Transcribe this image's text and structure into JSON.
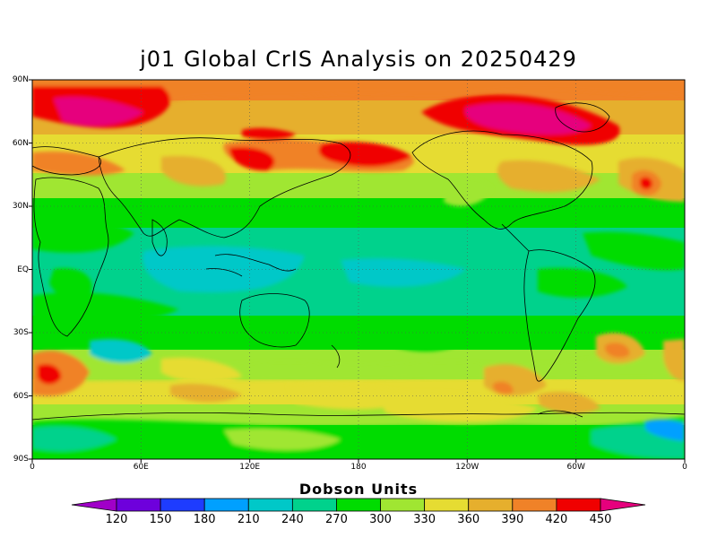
{
  "title": "j01 Global CrIS Analysis on 20250429",
  "map": {
    "projection": "equirectangular, centered on 180",
    "lon_range": [
      0,
      360
    ],
    "lat_range": [
      -90,
      90
    ],
    "lat_ticks": [
      "90N",
      "60N",
      "30N",
      "EQ",
      "30S",
      "60S",
      "90S"
    ],
    "lon_ticks": [
      "0",
      "60E",
      "120E",
      "180",
      "120W",
      "60W",
      "0"
    ],
    "gridlines": "dotted at 60 deg lon / 30 deg lat"
  },
  "colorbar": {
    "title": "Dobson Units",
    "ticks": [
      "120",
      "150",
      "180",
      "210",
      "240",
      "270",
      "300",
      "330",
      "360",
      "390",
      "420",
      "450"
    ],
    "colors": [
      "#a000c8",
      "#6e00dc",
      "#1e3cff",
      "#00a0ff",
      "#00c8c8",
      "#00d28c",
      "#00dc00",
      "#a0e632",
      "#e6dc32",
      "#e6af2d",
      "#f08228",
      "#f00000",
      "#e6007d"
    ]
  }
}
